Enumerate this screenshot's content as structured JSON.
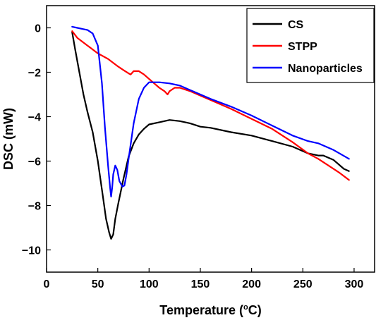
{
  "chart_data": {
    "type": "line",
    "title": "",
    "xlabel": "Temperature (°C)",
    "xlabel_parts": {
      "before": "Temperature (",
      "sup": "o",
      "after": "C)"
    },
    "ylabel": "DSC (mW)",
    "xlim": [
      0,
      320
    ],
    "ylim": [
      -11,
      1
    ],
    "xticks": [
      0,
      50,
      100,
      150,
      200,
      250,
      300
    ],
    "yticks": [
      0,
      -2,
      -4,
      -6,
      -8,
      -10
    ],
    "xtick_labels": [
      "0",
      "50",
      "100",
      "150",
      "200",
      "250",
      "300"
    ],
    "ytick_labels": [
      "0",
      "−2",
      "−4",
      "−6",
      "−8",
      "−10"
    ],
    "grid": false,
    "legend_position": "top-right",
    "series": [
      {
        "name": "CS",
        "color": "#000000",
        "x": [
          25,
          28,
          32,
          36,
          40,
          45,
          50,
          55,
          58,
          61,
          63,
          65,
          67,
          70,
          75,
          80,
          85,
          90,
          95,
          100,
          110,
          120,
          130,
          140,
          150,
          160,
          180,
          200,
          220,
          240,
          255,
          265,
          270,
          280,
          290,
          295
        ],
        "y": [
          -0.2,
          -1.0,
          -2.0,
          -3.0,
          -3.8,
          -4.7,
          -6.0,
          -7.6,
          -8.6,
          -9.2,
          -9.5,
          -9.3,
          -8.6,
          -7.9,
          -6.8,
          -5.8,
          -5.2,
          -4.8,
          -4.55,
          -4.35,
          -4.25,
          -4.15,
          -4.2,
          -4.3,
          -4.45,
          -4.5,
          -4.7,
          -4.85,
          -5.1,
          -5.35,
          -5.65,
          -5.75,
          -5.75,
          -5.95,
          -6.35,
          -6.45
        ]
      },
      {
        "name": "STPP",
        "color": "#ff0000",
        "x": [
          25,
          30,
          40,
          50,
          60,
          70,
          75,
          80,
          82,
          85,
          90,
          95,
          100,
          105,
          110,
          115,
          118,
          120,
          125,
          130,
          140,
          150,
          160,
          180,
          200,
          220,
          240,
          255,
          265,
          275,
          285,
          295
        ],
        "y": [
          -0.15,
          -0.45,
          -0.8,
          -1.15,
          -1.4,
          -1.75,
          -1.9,
          -2.05,
          -2.1,
          -1.95,
          -1.95,
          -2.1,
          -2.3,
          -2.5,
          -2.7,
          -2.85,
          -3.0,
          -2.85,
          -2.7,
          -2.7,
          -2.85,
          -3.05,
          -3.25,
          -3.65,
          -4.1,
          -4.55,
          -5.15,
          -5.65,
          -5.9,
          -6.2,
          -6.5,
          -6.85
        ]
      },
      {
        "name": "Nanoparticles",
        "color": "#0000ff",
        "x": [
          25,
          30,
          35,
          40,
          45,
          50,
          54,
          57,
          60,
          62,
          63,
          64,
          65,
          67,
          69,
          71,
          74,
          76,
          78,
          80,
          85,
          90,
          95,
          100,
          110,
          120,
          130,
          140,
          150,
          160,
          180,
          200,
          220,
          240,
          255,
          265,
          280,
          295
        ],
        "y": [
          0.05,
          0.0,
          -0.05,
          -0.1,
          -0.25,
          -0.8,
          -2.5,
          -4.5,
          -6.2,
          -7.2,
          -7.6,
          -7.2,
          -6.6,
          -6.2,
          -6.4,
          -6.9,
          -7.15,
          -7.1,
          -6.6,
          -5.9,
          -4.3,
          -3.2,
          -2.7,
          -2.45,
          -2.45,
          -2.5,
          -2.6,
          -2.8,
          -3.0,
          -3.2,
          -3.55,
          -3.95,
          -4.4,
          -4.85,
          -5.1,
          -5.2,
          -5.5,
          -5.9
        ]
      }
    ]
  }
}
